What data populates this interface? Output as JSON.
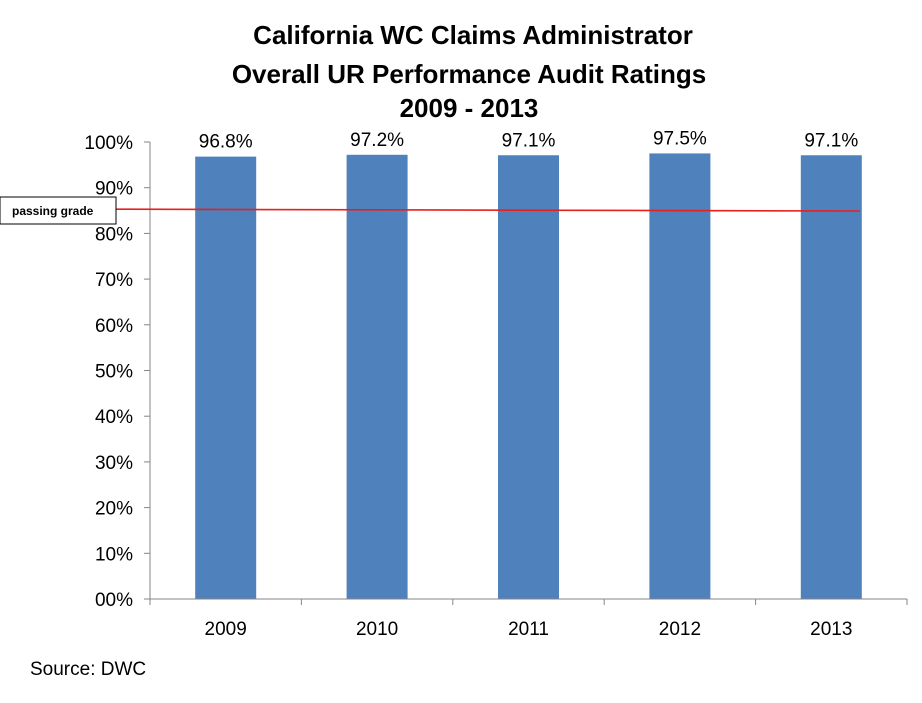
{
  "chart_data": {
    "type": "bar",
    "title": [
      "California WC Claims Administrator",
      "Overall UR Performance Audit Ratings",
      "2009 - 2013"
    ],
    "categories": [
      "2009",
      "2010",
      "2011",
      "2012",
      "2013"
    ],
    "values": [
      96.8,
      97.2,
      97.1,
      97.5,
      97.1
    ],
    "data_labels": [
      "96.8%",
      "97.2%",
      "97.1%",
      "97.5%",
      "97.1%"
    ],
    "ylim": [
      0,
      100
    ],
    "yticks": [
      0,
      10,
      20,
      30,
      40,
      50,
      60,
      70,
      80,
      90,
      100
    ],
    "ytick_labels": [
      "00%",
      "10%",
      "20%",
      "30%",
      "40%",
      "50%",
      "60%",
      "70%",
      "80%",
      "90%",
      "100%"
    ],
    "xlabel": "",
    "ylabel": "",
    "grid": false,
    "legend": "none",
    "reference_line": {
      "label": "passing grade",
      "start_value": 85.3,
      "end_value": 84.9,
      "color": "#e8201c"
    },
    "bar_color": "#4f81bd",
    "source": "Source: DWC"
  }
}
